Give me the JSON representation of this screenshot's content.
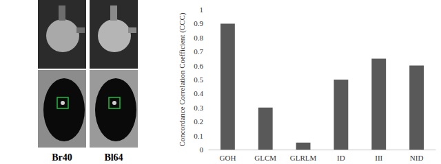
{
  "chart_data": {
    "type": "bar",
    "y_label": "Concordance Correlation Coefficient (CCC)",
    "categories": [
      "GOH",
      "GLCM",
      "GLRLM",
      "ID",
      "III",
      "NID"
    ],
    "values": [
      0.9,
      0.3,
      0.05,
      0.5,
      0.65,
      0.6
    ],
    "color": "#595959",
    "ylim": [
      0,
      1
    ],
    "yticks": [
      0,
      0.1,
      0.2,
      0.3,
      0.4,
      0.5,
      0.6,
      0.7,
      0.8,
      0.9,
      1
    ],
    "grid": false
  },
  "images": [
    {
      "label": "Br40"
    },
    {
      "label": "Bl64"
    }
  ]
}
